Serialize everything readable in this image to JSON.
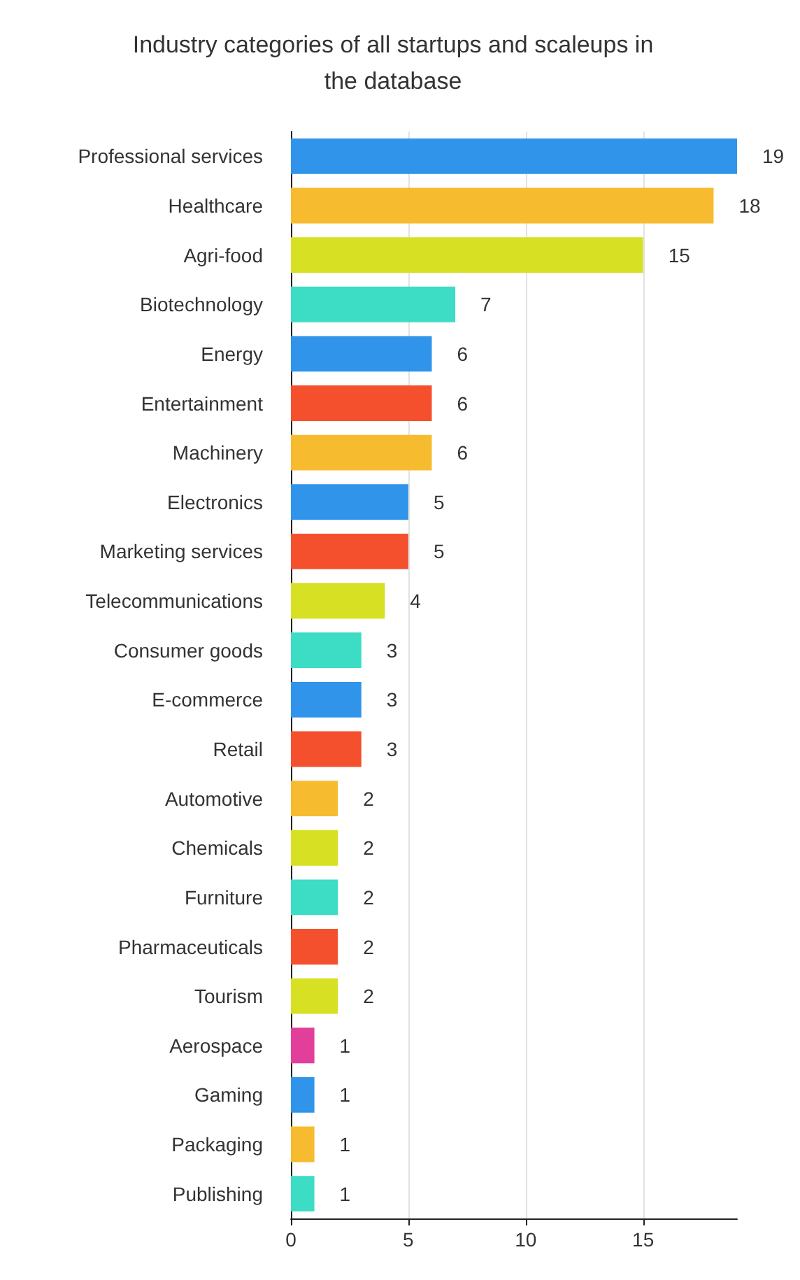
{
  "chart_data": {
    "type": "bar",
    "orientation": "horizontal",
    "title": "Industry categories of all startups and scaleups in\nthe database",
    "categories": [
      "Professional services",
      "Healthcare",
      "Agri-food",
      "Biotechnology",
      "Energy",
      "Entertainment",
      "Machinery",
      "Electronics",
      "Marketing services",
      "Telecommunications",
      "Consumer goods",
      "E-commerce",
      "Retail",
      "Automotive",
      "Chemicals",
      "Furniture",
      "Pharmaceuticals",
      "Tourism",
      "Aerospace",
      "Gaming",
      "Packaging",
      "Publishing"
    ],
    "values": [
      19,
      18,
      15,
      7,
      6,
      6,
      6,
      5,
      5,
      4,
      3,
      3,
      3,
      2,
      2,
      2,
      2,
      2,
      1,
      1,
      1,
      1
    ],
    "colors": [
      "#2f94ea",
      "#f7bb2f",
      "#d7e022",
      "#3ddcc4",
      "#2f94ea",
      "#f5502d",
      "#f7bb2f",
      "#2f94ea",
      "#f5502d",
      "#d7e022",
      "#3ddcc4",
      "#2f94ea",
      "#f5502d",
      "#f7bb2f",
      "#d7e022",
      "#3ddcc4",
      "#f5502d",
      "#d7e022",
      "#e23f9b",
      "#2f94ea",
      "#f7bb2f",
      "#3ddcc4"
    ],
    "xlim": [
      0,
      19
    ],
    "xticks": [
      0,
      5,
      10,
      15
    ],
    "grid": "x",
    "data_labels": true
  }
}
